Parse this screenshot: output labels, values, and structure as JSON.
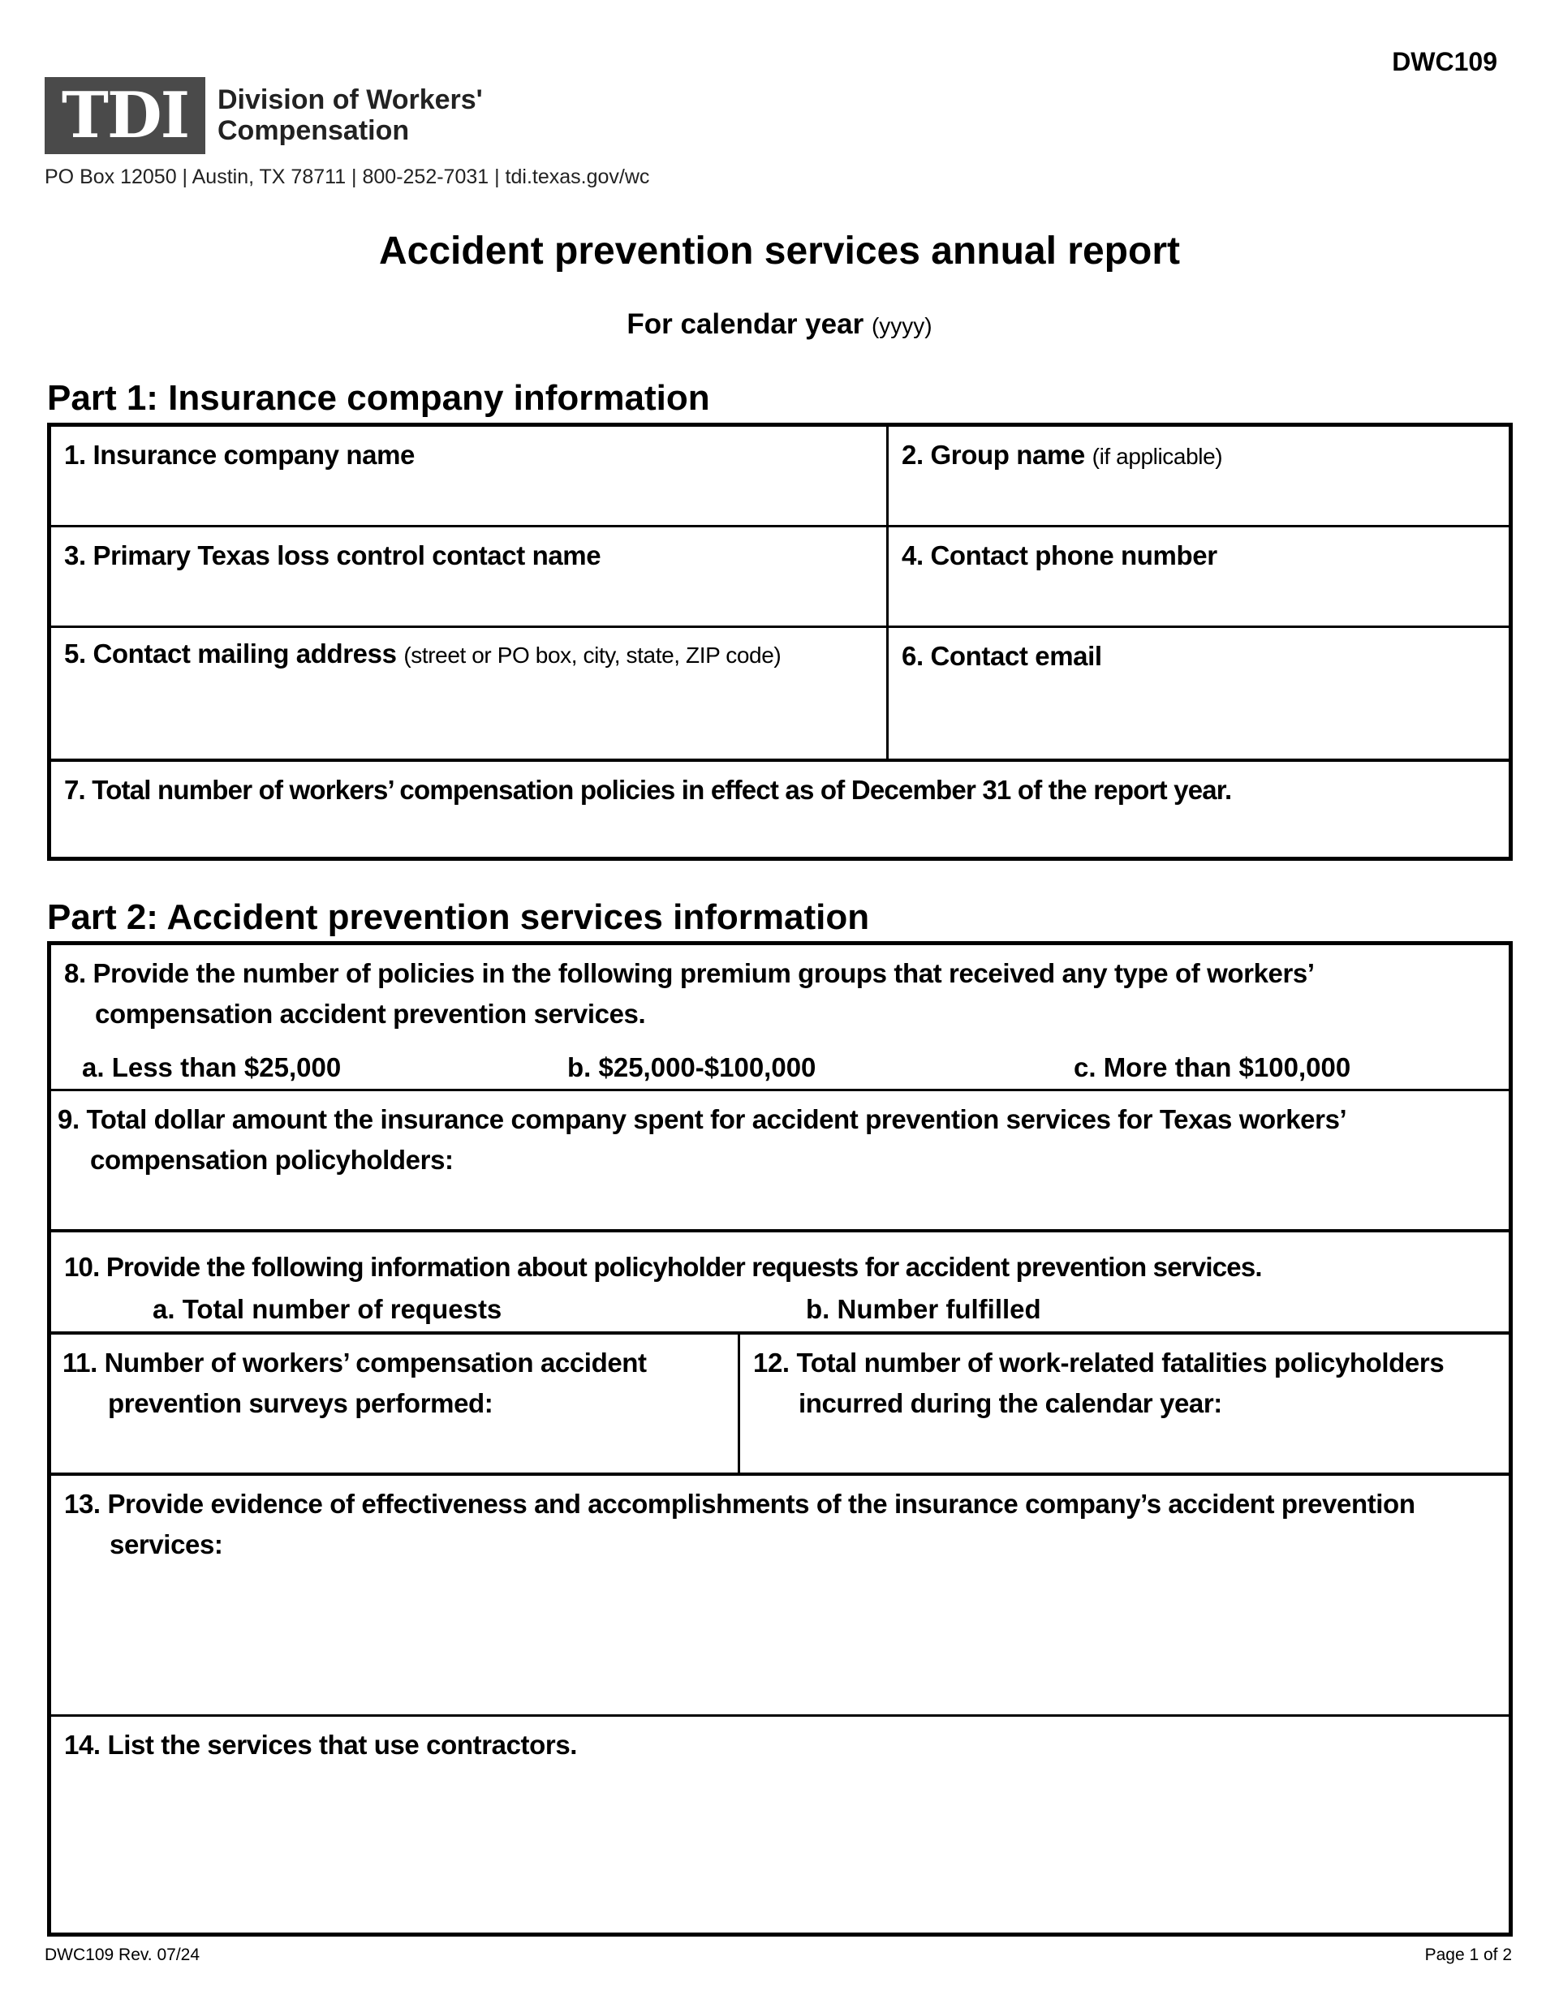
{
  "header": {
    "form_id": "DWC109",
    "logo_text": "TDI",
    "org_line1": "Division of Workers'",
    "org_line2": "Compensation",
    "address": "PO Box 12050 | Austin, TX 78711 | 800-252-7031 | tdi.texas.gov/wc",
    "title": "Accident prevention services annual report",
    "year_label": "For calendar year",
    "year_hint": "(yyyy)"
  },
  "part1": {
    "heading": "Part 1: Insurance company information",
    "fields": [
      {
        "label": "1. Insurance company name",
        "hint": ""
      },
      {
        "label": "2. Group name",
        "hint": "(if applicable)"
      },
      {
        "label": "3. Primary Texas loss control contact name",
        "hint": ""
      },
      {
        "label": "4. Contact phone number",
        "hint": ""
      },
      {
        "label": "5. Contact mailing address",
        "hint": "(street or PO box, city, state, ZIP code)"
      },
      {
        "label": "6. Contact email",
        "hint": ""
      },
      {
        "label": "7. Total number of workers’ compensation policies in effect as of December 31 of the report year.",
        "hint": ""
      }
    ]
  },
  "part2": {
    "heading": "Part 2: Accident prevention services information",
    "q8": {
      "label": "8. Provide the number of policies in the following premium groups that received any type of workers’ compensation accident prevention services.",
      "a": "a. Less than $25,000",
      "b": "b. $25,000-$100,000",
      "c": "c. More than $100,000"
    },
    "q9": "9. Total dollar amount the insurance company spent for accident prevention services for Texas workers’ compensation policyholders:",
    "q10": {
      "label": "10. Provide the following information about policyholder requests for accident prevention services.",
      "a": "a. Total number of requests",
      "b": "b. Number fulfilled"
    },
    "q11": "11. Number of workers’ compensation accident prevention surveys performed:",
    "q12": "12. Total number of work-related fatalities policyholders incurred during the calendar year:",
    "q13": "13. Provide evidence of effectiveness and accomplishments of the insurance company’s accident prevention services:",
    "q14": "14. List the services that use contractors."
  },
  "footer": {
    "revision": "DWC109 Rev. 07/24",
    "page": "Page 1 of 2"
  }
}
